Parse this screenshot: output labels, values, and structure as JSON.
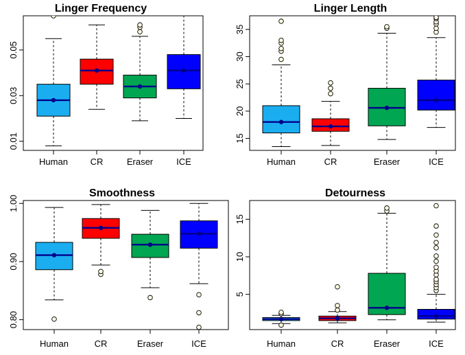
{
  "chart_data": [
    {
      "type": "box",
      "title": "Linger Frequency",
      "categories": [
        "Human",
        "CR",
        "Eraser",
        "ICE"
      ],
      "colors": [
        "#1aaef0",
        "#ff0000",
        "#00a651",
        "#0000ff"
      ],
      "ylim": [
        0.006,
        0.065
      ],
      "yticks": [
        0.01,
        0.03,
        0.05
      ],
      "ytick_labels": [
        "0.01",
        "0.03",
        "0.05"
      ],
      "boxes": [
        {
          "whisker_low": 0.008,
          "q1": 0.021,
          "median": 0.028,
          "q3": 0.035,
          "whisker_high": 0.055,
          "mean": 0.028,
          "outliers": [
            0.065
          ]
        },
        {
          "whisker_low": 0.024,
          "q1": 0.035,
          "median": 0.041,
          "q3": 0.046,
          "whisker_high": 0.061,
          "mean": 0.041,
          "outliers": []
        },
        {
          "whisker_low": 0.019,
          "q1": 0.029,
          "median": 0.034,
          "q3": 0.039,
          "whisker_high": 0.056,
          "mean": 0.034,
          "outliers": [
            0.058,
            0.06,
            0.061
          ]
        },
        {
          "whisker_low": 0.02,
          "q1": 0.033,
          "median": 0.041,
          "q3": 0.048,
          "whisker_high": 0.067,
          "mean": 0.041,
          "outliers": []
        }
      ]
    },
    {
      "type": "box",
      "title": "Linger Length",
      "categories": [
        "Human",
        "CR",
        "Eraser",
        "ICE"
      ],
      "colors": [
        "#1aaef0",
        "#ff0000",
        "#00a651",
        "#0000ff"
      ],
      "ylim": [
        12.8,
        37.5
      ],
      "yticks": [
        15,
        20,
        25,
        30,
        35
      ],
      "ytick_labels": [
        "15",
        "20",
        "25",
        "30",
        "35"
      ],
      "boxes": [
        {
          "whisker_low": 13.5,
          "q1": 16.0,
          "median": 18.0,
          "q3": 21.0,
          "whisker_high": 28.5,
          "mean": 18.0,
          "outliers": [
            29.5,
            31.0,
            31.5,
            32.5,
            33.0,
            36.5
          ]
        },
        {
          "whisker_low": 13.7,
          "q1": 16.3,
          "median": 17.2,
          "q3": 18.6,
          "whisker_high": 21.8,
          "mean": 17.2,
          "outliers": [
            23.2,
            24.2,
            25.2
          ]
        },
        {
          "whisker_low": 14.8,
          "q1": 17.3,
          "median": 20.6,
          "q3": 24.2,
          "whisker_high": 34.3,
          "mean": 20.6,
          "outliers": [
            35.2,
            35.5
          ]
        },
        {
          "whisker_low": 17.0,
          "q1": 20.2,
          "median": 22.0,
          "q3": 25.7,
          "whisker_high": 33.5,
          "mean": 22.0,
          "outliers": [
            34.5,
            35.2,
            36.0,
            36.4,
            37.0,
            37.2
          ]
        }
      ]
    },
    {
      "type": "box",
      "title": "Smoothness",
      "categories": [
        "Human",
        "CR",
        "Eraser",
        "ICE"
      ],
      "colors": [
        "#1aaef0",
        "#ff0000",
        "#00a651",
        "#0000ff"
      ],
      "ylim": [
        0.783,
        1.005
      ],
      "yticks": [
        0.8,
        0.9,
        1.0
      ],
      "ytick_labels": [
        "0.80",
        "0.90",
        "1.00"
      ],
      "boxes": [
        {
          "whisker_low": 0.834,
          "q1": 0.886,
          "median": 0.911,
          "q3": 0.933,
          "whisker_high": 0.993,
          "mean": 0.911,
          "outliers": [
            0.801
          ]
        },
        {
          "whisker_low": 0.894,
          "q1": 0.94,
          "median": 0.958,
          "q3": 0.974,
          "whisker_high": 0.998,
          "mean": 0.958,
          "outliers": [
            0.878,
            0.883
          ]
        },
        {
          "whisker_low": 0.855,
          "q1": 0.907,
          "median": 0.929,
          "q3": 0.947,
          "whisker_high": 0.988,
          "mean": 0.929,
          "outliers": [
            0.838
          ]
        },
        {
          "whisker_low": 0.862,
          "q1": 0.923,
          "median": 0.948,
          "q3": 0.97,
          "whisker_high": 1.0,
          "mean": 0.948,
          "outliers": [
            0.843,
            0.812,
            0.787
          ]
        }
      ]
    },
    {
      "type": "box",
      "title": "Detourness",
      "categories": [
        "Human",
        "CR",
        "Eraser",
        "ICE"
      ],
      "colors": [
        "#1aaef0",
        "#ff0000",
        "#00a651",
        "#0000ff"
      ],
      "ylim": [
        0.3,
        17.5
      ],
      "yticks": [
        5,
        10,
        15
      ],
      "ytick_labels": [
        "5",
        "10",
        "15"
      ],
      "boxes": [
        {
          "whisker_low": 1.1,
          "q1": 1.5,
          "median": 1.7,
          "q3": 1.9,
          "whisker_high": 2.2,
          "mean": 1.7,
          "outliers": [
            0.9,
            2.4,
            2.6
          ]
        },
        {
          "whisker_low": 1.2,
          "q1": 1.5,
          "median": 1.8,
          "q3": 2.1,
          "whisker_high": 2.7,
          "mean": 1.8,
          "outliers": [
            2.9,
            3.5,
            6.0
          ]
        },
        {
          "whisker_low": 1.6,
          "q1": 2.3,
          "median": 3.2,
          "q3": 7.8,
          "whisker_high": 15.8,
          "mean": 3.2,
          "outliers": [
            16.1,
            16.5
          ]
        },
        {
          "whisker_low": 1.3,
          "q1": 1.7,
          "median": 2.1,
          "q3": 3.0,
          "whisker_high": 5.0,
          "mean": 2.1,
          "outliers": [
            5.5,
            5.9,
            6.3,
            6.7,
            7.0,
            7.6,
            8.1,
            8.6,
            9.4,
            10.1,
            11.2,
            11.9,
            12.9,
            14.1,
            16.8
          ]
        }
      ]
    }
  ]
}
